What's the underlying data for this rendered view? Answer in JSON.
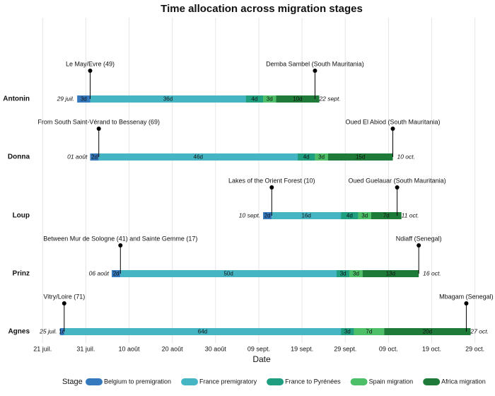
{
  "chart_data": {
    "type": "timeline",
    "title": "Time allocation across migration stages",
    "x_label": "Date",
    "legend_title": "Stage",
    "legend_position": "bottom",
    "grid": true,
    "xlim": [
      "07-19",
      "11-01"
    ],
    "xticks": [
      {
        "value": "07-21",
        "label": "21 juil."
      },
      {
        "value": "07-31",
        "label": "31 juil."
      },
      {
        "value": "08-10",
        "label": "10 août"
      },
      {
        "value": "08-20",
        "label": "20 août"
      },
      {
        "value": "08-30",
        "label": "30 août"
      },
      {
        "value": "09-09",
        "label": "09 sept."
      },
      {
        "value": "09-19",
        "label": "19 sept."
      },
      {
        "value": "09-29",
        "label": "29 sept."
      },
      {
        "value": "10-09",
        "label": "09 oct."
      },
      {
        "value": "10-19",
        "label": "19 oct."
      },
      {
        "value": "10-29",
        "label": "29 oct."
      }
    ],
    "series": [
      {
        "name": "Belgium to premigration",
        "color": "#3479bd"
      },
      {
        "name": "France premigratory",
        "color": "#45b5c4"
      },
      {
        "name": "France to Pyrénées",
        "color": "#1f9e80"
      },
      {
        "name": "Spain migration",
        "color": "#4cbf68"
      },
      {
        "name": "Africa migration",
        "color": "#1e7a38"
      }
    ],
    "rows": [
      {
        "name": "Antonin",
        "start": {
          "value": "07-29",
          "label": "29 juil."
        },
        "end": {
          "value": "09-22",
          "label": "22 sept."
        },
        "values": [
          3,
          36,
          4,
          3,
          10
        ],
        "value_labels": [
          "3d",
          "36d",
          "4d",
          "3d",
          "10d"
        ],
        "markers": [
          {
            "label": "Le May/Evre (49)",
            "date": "08-01"
          },
          {
            "label": "Demba Sambel (South Mauritania)",
            "date": "09-22"
          }
        ]
      },
      {
        "name": "Donna",
        "start": {
          "value": "08-01",
          "label": "01 août"
        },
        "end": {
          "value": "10-10",
          "label": "10 oct."
        },
        "values": [
          2,
          46,
          4,
          3,
          15
        ],
        "value_labels": [
          "2d",
          "46d",
          "4d",
          "3d",
          "15d"
        ],
        "markers": [
          {
            "label": "From South Saint-Vérand to Bessenay (69)",
            "date": "08-03"
          },
          {
            "label": "Oued El Abiod (South Mauritania)",
            "date": "10-10"
          }
        ]
      },
      {
        "name": "Loup",
        "start": {
          "value": "09-10",
          "label": "10 sept."
        },
        "end": {
          "value": "10-11",
          "label": "11 oct."
        },
        "values": [
          2,
          16,
          4,
          3,
          7
        ],
        "value_labels": [
          "2d",
          "16d",
          "4d",
          "3d",
          "7d"
        ],
        "markers": [
          {
            "label": "Lakes of the Orient Forest (10)",
            "date": "09-12"
          },
          {
            "label": "Oued Guelauar (South Mauritania)",
            "date": "10-11"
          }
        ]
      },
      {
        "name": "Prinz",
        "start": {
          "value": "08-06",
          "label": "06 août"
        },
        "end": {
          "value": "10-16",
          "label": "16 oct."
        },
        "values": [
          2,
          50,
          3,
          3,
          13
        ],
        "value_labels": [
          "2d",
          "50d",
          "3d",
          "3d",
          "13d"
        ],
        "markers": [
          {
            "label": "Between Mur de Sologne (41) and Sainte Gemme (17)",
            "date": "08-08"
          },
          {
            "label": "Ndiaff (Senegal)",
            "date": "10-16"
          }
        ]
      },
      {
        "name": "Agnes",
        "start": {
          "value": "07-25",
          "label": "25 juil."
        },
        "end": {
          "value": "10-27",
          "label": "27 oct."
        },
        "values": [
          1,
          64,
          3,
          7,
          20
        ],
        "value_labels": [
          "1d",
          "64d",
          "3d",
          "7d",
          "20d"
        ],
        "markers": [
          {
            "label": "Vitry/Loire (71)",
            "date": "07-26"
          },
          {
            "label": "Mbagam (Senegal)",
            "date": "10-27"
          }
        ]
      }
    ]
  }
}
